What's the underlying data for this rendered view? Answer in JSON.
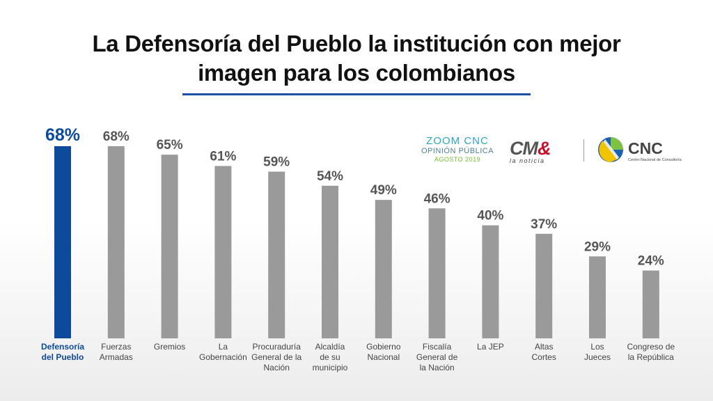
{
  "title_lines": [
    "La Defensoría del Pueblo la institución con mejor",
    "imagen para los colombianos"
  ],
  "branding": {
    "zoom_line1": "ZOOM CNC",
    "zoom_line2": "OPINIÓN PÚBLICA",
    "zoom_line3": "AGOSTO 2019",
    "cm_logo_main": "CM",
    "cm_logo_amp": "&",
    "cm_logo_sub": "la noticia",
    "cnc_logo": "CNC",
    "cnc_sub": "Centro Nacional de Consultoría"
  },
  "colors": {
    "highlight": "#0d4a9b",
    "bar": "#9a9a9a",
    "value_label": "#555555",
    "category_label": "#444444"
  },
  "chart_data": {
    "type": "bar",
    "title": "La Defensoría del Pueblo la institución con mejor imagen para los colombianos",
    "categories": [
      [
        "Defensoría",
        "del Pueblo"
      ],
      [
        "Fuerzas",
        "Armadas"
      ],
      [
        "Gremios"
      ],
      [
        "La",
        "Gobernación"
      ],
      [
        "Procuraduría",
        "General de la",
        "Nación"
      ],
      [
        "Alcaldía",
        "de su",
        "municipio"
      ],
      [
        "Gobierno",
        "Nacional"
      ],
      [
        "Fiscalía",
        "General de",
        "la Nación"
      ],
      [
        "La JEP"
      ],
      [
        "Altas",
        "Cortes"
      ],
      [
        "Los",
        "Jueces"
      ],
      [
        "Congreso de",
        "la República"
      ]
    ],
    "values": [
      68,
      68,
      65,
      61,
      59,
      54,
      49,
      46,
      40,
      37,
      29,
      24
    ],
    "labels": [
      "68%",
      "68%",
      "65%",
      "61%",
      "59%",
      "54%",
      "49%",
      "46%",
      "40%",
      "37%",
      "29%",
      "24%"
    ],
    "highlight_index": 0,
    "ylim": [
      0,
      68
    ],
    "grid": false,
    "xlabel": "",
    "ylabel": ""
  }
}
